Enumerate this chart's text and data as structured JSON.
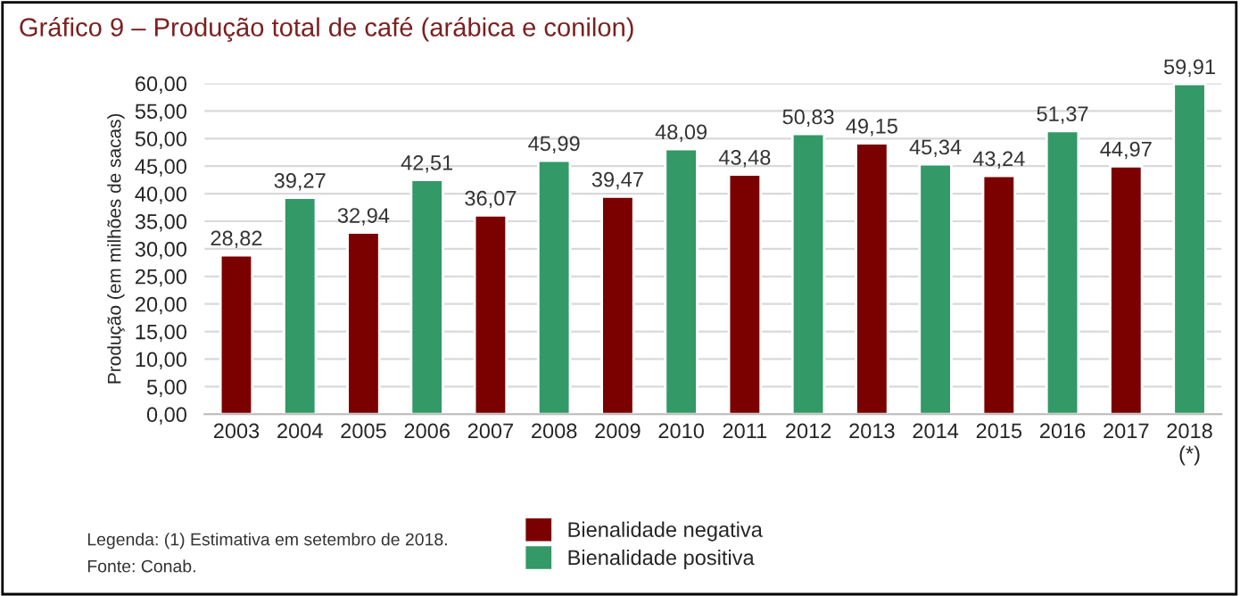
{
  "chart_data": {
    "type": "bar",
    "title": "Gráfico 9 – Produção total de café (arábica e conilon)",
    "ylabel": "Produção (em milhões de sacas)",
    "categories": [
      "2003",
      "2004",
      "2005",
      "2006",
      "2007",
      "2008",
      "2009",
      "2010",
      "2011",
      "2012",
      "2013",
      "2014",
      "2015",
      "2016",
      "2017",
      "2018\n(*)"
    ],
    "stacked": true,
    "series": [
      {
        "name": "Bienalidade negativa",
        "color": "#7b0000",
        "values": [
          28.82,
          null,
          32.94,
          null,
          36.07,
          null,
          39.47,
          null,
          43.48,
          null,
          49.15,
          null,
          43.24,
          null,
          44.97,
          null
        ],
        "value_labels": [
          "28,82",
          null,
          "32,94",
          null,
          "36,07",
          null,
          "39,47",
          null,
          "43,48",
          null,
          "49,15",
          null,
          "43,24",
          null,
          "44,97",
          null
        ]
      },
      {
        "name": "Bienalidade positiva",
        "color": "#339966",
        "values": [
          null,
          39.27,
          null,
          42.51,
          null,
          45.99,
          null,
          48.09,
          null,
          50.83,
          null,
          45.34,
          null,
          51.37,
          null,
          59.91
        ],
        "value_labels": [
          null,
          "39,27",
          null,
          "42,51",
          null,
          "45,99",
          null,
          "48,09",
          null,
          "50,83",
          null,
          "45,34",
          null,
          "51,37",
          null,
          "59,91"
        ]
      }
    ],
    "ylim": [
      0,
      60
    ],
    "yticks": [
      {
        "value": 0,
        "label": "0,00"
      },
      {
        "value": 5,
        "label": "5,00"
      },
      {
        "value": 10,
        "label": "10,00"
      },
      {
        "value": 15,
        "label": "15,00"
      },
      {
        "value": 20,
        "label": "20,00"
      },
      {
        "value": 25,
        "label": "25,00"
      },
      {
        "value": 30,
        "label": "30,00"
      },
      {
        "value": 35,
        "label": "35,00"
      },
      {
        "value": 40,
        "label": "40,00"
      },
      {
        "value": 45,
        "label": "45,00"
      },
      {
        "value": 50,
        "label": "50,00"
      },
      {
        "value": 55,
        "label": "55,00"
      },
      {
        "value": 60,
        "label": "60,00"
      }
    ],
    "grid": "y",
    "legend": "bottom",
    "annotations": [
      "Legenda: (1) Estimativa em setembro de 2018.",
      "Fonte: Conab."
    ]
  }
}
